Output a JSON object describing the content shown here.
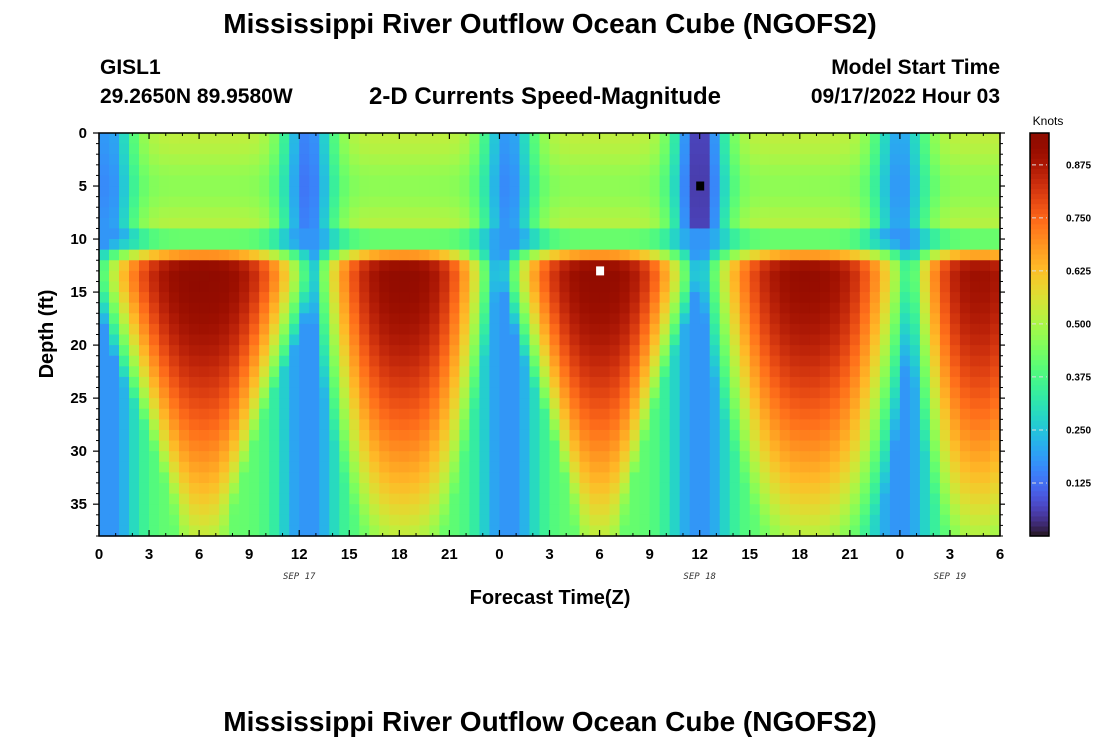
{
  "header": {
    "main_title": "Mississippi River Outflow Ocean Cube (NGOFS2)",
    "station_id": "GISL1",
    "station_coords": "29.2650N  89.9580W",
    "plot_title": "2-D Currents Speed-Magnitude",
    "model_start_label": "Model Start Time",
    "model_start_value": "09/17/2022 Hour 03"
  },
  "footer": {
    "repeated_title": "Mississippi River Outflow Ocean Cube (NGOFS2)"
  },
  "chart_data": {
    "type": "heatmap",
    "title": "2-D Currents Speed-Magnitude",
    "xlabel": "Forecast Time(Z)",
    "ylabel": "Depth (ft)",
    "x_unit": "hours",
    "x_range": [
      0,
      54
    ],
    "x_ticks": [
      0,
      3,
      6,
      9,
      12,
      15,
      18,
      21,
      24,
      27,
      30,
      33,
      36,
      39,
      42,
      45,
      48,
      51,
      54
    ],
    "x_tick_labels": [
      "0",
      "3",
      "6",
      "9",
      "12",
      "15",
      "18",
      "21",
      "0",
      "3",
      "6",
      "9",
      "12",
      "15",
      "18",
      "21",
      "0",
      "3",
      "6"
    ],
    "date_labels": [
      {
        "label": "SEP 17",
        "x": 12
      },
      {
        "label": "SEP 18",
        "x": 36
      },
      {
        "label": "SEP 19",
        "x": 51
      }
    ],
    "y_range": [
      0,
      38
    ],
    "y_inverted": true,
    "y_ticks": [
      0,
      5,
      10,
      15,
      20,
      25,
      30,
      35
    ],
    "colorbar": {
      "unit": "Knots",
      "range": [
        0,
        0.95
      ],
      "ticks": [
        0.125,
        0.25,
        0.375,
        0.5,
        0.625,
        0.75,
        0.875
      ],
      "tick_labels": [
        "0.125",
        "0.250",
        "0.375",
        "0.500",
        "0.625",
        "0.750",
        "0.875"
      ],
      "colormap": "turbo"
    },
    "field": {
      "surface_layer_depth": 9,
      "minima": [
        {
          "x": 0.5,
          "speed": 0.18
        },
        {
          "x": 12.5,
          "speed": 0.15
        },
        {
          "x": 24.5,
          "speed": 0.18
        },
        {
          "x": 36.0,
          "speed": 0.05
        },
        {
          "x": 48.0,
          "speed": 0.2
        }
      ],
      "lobes": [
        {
          "center_x": 5.0,
          "start_x": 1.0,
          "end_x": 11.5,
          "peak_speed": 0.94,
          "shape": "tapering"
        },
        {
          "center_x": 18.0,
          "start_x": 14.0,
          "end_x": 22.5,
          "peak_speed": 0.93,
          "shape": "rounded"
        },
        {
          "center_x": 30.0,
          "start_x": 25.5,
          "end_x": 34.5,
          "peak_speed": 0.93,
          "shape": "tapering"
        },
        {
          "center_x": 42.0,
          "start_x": 37.5,
          "end_x": 47.5,
          "peak_speed": 0.92,
          "shape": "rounded"
        },
        {
          "center_x": 54.0,
          "start_x": 49.5,
          "end_x": 56.0,
          "peak_speed": 0.9,
          "shape": "rounded"
        }
      ],
      "markers": [
        {
          "x": 36.0,
          "depth": 5,
          "color": "#000000"
        },
        {
          "x": 30.0,
          "depth": 13,
          "color": "#ffffff"
        }
      ]
    }
  }
}
